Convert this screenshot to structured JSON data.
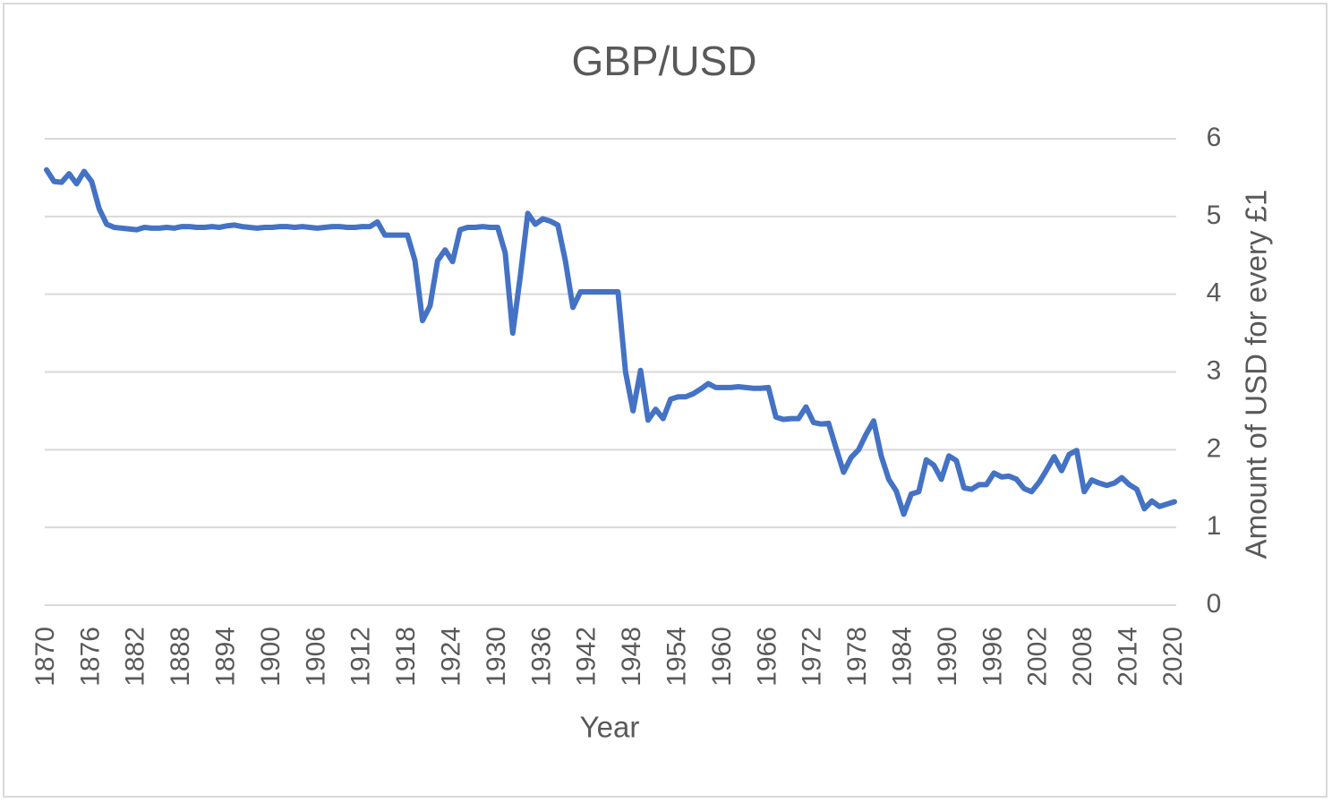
{
  "chart_data": {
    "type": "line",
    "title": "GBP/USD",
    "x_label": "Year",
    "y_label": "Amount of USD for every £1",
    "x": [
      1870,
      1871,
      1872,
      1873,
      1874,
      1875,
      1876,
      1877,
      1878,
      1879,
      1880,
      1881,
      1882,
      1883,
      1884,
      1885,
      1886,
      1887,
      1888,
      1889,
      1890,
      1891,
      1892,
      1893,
      1894,
      1895,
      1896,
      1897,
      1898,
      1899,
      1900,
      1901,
      1902,
      1903,
      1904,
      1905,
      1906,
      1907,
      1908,
      1909,
      1910,
      1911,
      1912,
      1913,
      1914,
      1915,
      1916,
      1917,
      1918,
      1919,
      1920,
      1921,
      1922,
      1923,
      1924,
      1925,
      1926,
      1927,
      1928,
      1929,
      1930,
      1931,
      1932,
      1933,
      1934,
      1935,
      1936,
      1937,
      1938,
      1939,
      1940,
      1941,
      1942,
      1943,
      1944,
      1945,
      1946,
      1947,
      1948,
      1949,
      1950,
      1951,
      1952,
      1953,
      1954,
      1955,
      1956,
      1957,
      1958,
      1959,
      1960,
      1961,
      1962,
      1963,
      1964,
      1965,
      1966,
      1967,
      1968,
      1969,
      1970,
      1971,
      1972,
      1973,
      1974,
      1975,
      1976,
      1977,
      1978,
      1979,
      1980,
      1981,
      1982,
      1983,
      1984,
      1985,
      1986,
      1987,
      1988,
      1989,
      1990,
      1991,
      1992,
      1993,
      1994,
      1995,
      1996,
      1997,
      1998,
      1999,
      2000,
      2001,
      2002,
      2003,
      2004,
      2005,
      2006,
      2007,
      2008,
      2009,
      2010,
      2011,
      2012,
      2013,
      2014,
      2015,
      2016,
      2017,
      2018,
      2019,
      2020
    ],
    "series": [
      {
        "name": "GBP/USD",
        "color": "#4472c4",
        "values": [
          5.6,
          5.45,
          5.44,
          5.55,
          5.42,
          5.58,
          5.45,
          5.1,
          4.9,
          4.86,
          4.85,
          4.84,
          4.83,
          4.86,
          4.85,
          4.85,
          4.86,
          4.85,
          4.87,
          4.87,
          4.86,
          4.86,
          4.87,
          4.86,
          4.88,
          4.89,
          4.87,
          4.86,
          4.85,
          4.86,
          4.86,
          4.87,
          4.87,
          4.86,
          4.87,
          4.86,
          4.85,
          4.86,
          4.87,
          4.87,
          4.86,
          4.86,
          4.87,
          4.87,
          4.93,
          4.76,
          4.76,
          4.76,
          4.76,
          4.43,
          3.66,
          3.85,
          4.43,
          4.57,
          4.42,
          4.83,
          4.86,
          4.86,
          4.87,
          4.86,
          4.86,
          4.53,
          3.5,
          4.23,
          5.04,
          4.9,
          4.97,
          4.94,
          4.89,
          4.43,
          3.83,
          4.03,
          4.03,
          4.03,
          4.03,
          4.03,
          4.03,
          3.0,
          2.5,
          3.02,
          2.38,
          2.52,
          2.4,
          2.65,
          2.68,
          2.68,
          2.72,
          2.78,
          2.85,
          2.8,
          2.8,
          2.8,
          2.81,
          2.8,
          2.79,
          2.79,
          2.8,
          2.42,
          2.39,
          2.4,
          2.4,
          2.55,
          2.35,
          2.33,
          2.34,
          2.02,
          1.71,
          1.9,
          2.0,
          2.2,
          2.37,
          1.92,
          1.62,
          1.47,
          1.17,
          1.43,
          1.46,
          1.87,
          1.8,
          1.62,
          1.92,
          1.86,
          1.51,
          1.49,
          1.55,
          1.55,
          1.7,
          1.65,
          1.66,
          1.62,
          1.5,
          1.46,
          1.58,
          1.74,
          1.91,
          1.73,
          1.94,
          1.99,
          1.46,
          1.61,
          1.57,
          1.54,
          1.57,
          1.64,
          1.55,
          1.49,
          1.24,
          1.34,
          1.27,
          1.3,
          1.33
        ]
      }
    ],
    "xlim": [
      1870,
      2020
    ],
    "xticks": [
      1870,
      1876,
      1882,
      1888,
      1894,
      1900,
      1906,
      1912,
      1918,
      1924,
      1930,
      1936,
      1942,
      1948,
      1954,
      1960,
      1966,
      1972,
      1978,
      1984,
      1990,
      1996,
      2002,
      2008,
      2014,
      2020
    ],
    "ylim": [
      0,
      6
    ],
    "yticks": [
      0,
      1,
      2,
      3,
      4,
      5,
      6
    ],
    "grid": true,
    "y_axis_side": "right"
  }
}
